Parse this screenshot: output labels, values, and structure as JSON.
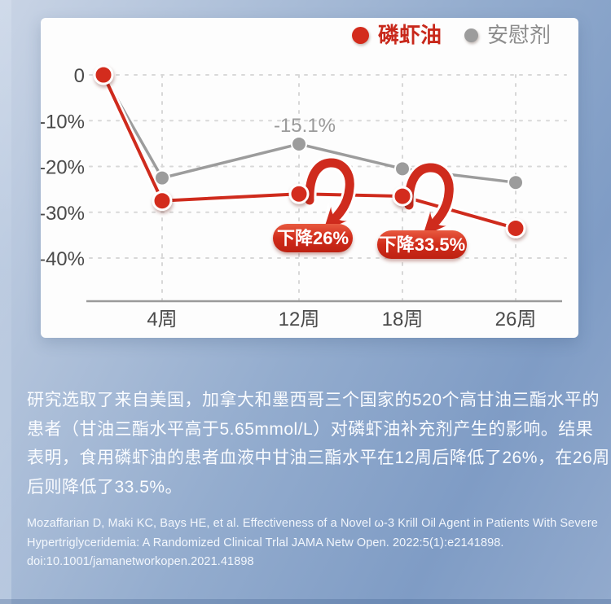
{
  "background": {
    "top_color": "#c9d4e5",
    "mid_color": "#8ea8cc",
    "bottom_color": "#92aacd"
  },
  "card": {
    "bg_color": "#fdfdfd"
  },
  "chart_data": {
    "type": "line",
    "title": "",
    "xlabel": "",
    "ylabel": "",
    "categories": [
      "",
      "4周",
      "12周",
      "18周",
      "26周"
    ],
    "series": [
      {
        "name": "磷虾油",
        "color": "#cf2b1d",
        "dot_color": "#d32c1d",
        "label_color": "#c8281b",
        "values": [
          0,
          -27.5,
          -26,
          -26.5,
          -33.5
        ]
      },
      {
        "name": "安慰剂",
        "color": "#9c9c9c",
        "dot_color": "#9c9c9c",
        "label_color": "#8c8c8c",
        "values": [
          0,
          -22.5,
          -15.1,
          -20.5,
          -23.5
        ]
      }
    ],
    "y_ticks": [
      {
        "label": "0",
        "value": 0
      },
      {
        "label": "-10%",
        "value": -10
      },
      {
        "label": "-20%",
        "value": -20
      },
      {
        "label": "-30%",
        "value": -30
      },
      {
        "label": "-40%",
        "value": -40
      }
    ],
    "ylim": [
      -45,
      3
    ],
    "grid": "dashed",
    "legend_position": "top-right",
    "annotations": [
      {
        "type": "point_label",
        "text": "-15.1%",
        "series": "安慰剂",
        "category": "12周"
      },
      {
        "type": "badge",
        "text": "下降26%",
        "category": "12周"
      },
      {
        "type": "badge",
        "text": "下降33.5%",
        "category": "18周"
      }
    ]
  },
  "description": {
    "lines": [
      "研究选取了来自美国，加拿大和墨西哥三个国家的520个高甘油三酯水平的",
      "患者（甘油三酯水平高于5.65mmol/L）对磷虾油补充剂产生的影响。结果",
      "表明，食用磷虾油的患者血液中甘油三酯水平在12周后降低了26%，在26周",
      "后则降低了33.5%。"
    ]
  },
  "citation": {
    "lines": [
      "Mozaffarian D, Maki KC, Bays HE, et al. Effectiveness of a Novel ω-3 Krill Oil Agent in Patients With Severe",
      "Hypertriglyceridemia: A Randomized Clinical Trlal JAMA Netw Open. 2022:5(1):e2141898.",
      "doi:10.1001/jamanetworkopen.2021.41898"
    ]
  }
}
